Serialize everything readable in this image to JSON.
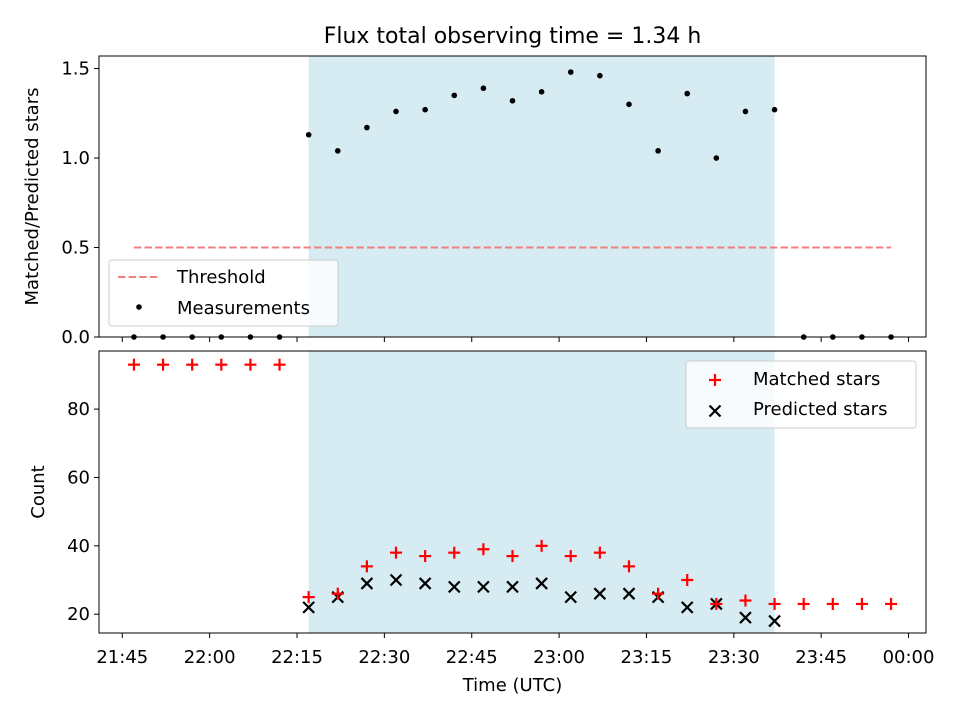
{
  "chart_data": [
    {
      "type": "scatter",
      "title": "Flux total observing time = 1.34 h",
      "xlabel": "",
      "ylabel": "Matched/Predicted stars",
      "ylim": [
        0,
        1.57
      ],
      "yticks": [
        "0.0",
        "0.5",
        "1.0",
        "1.5"
      ],
      "ytick_values": [
        0,
        0.5,
        1.0,
        1.5
      ],
      "x_time_range": [
        "21:41",
        "00:03"
      ],
      "shaded_span": {
        "start": "22:17",
        "end": "23:37",
        "color": "#add8e6"
      },
      "threshold": {
        "name": "Threshold",
        "value": 0.5,
        "start": "21:47",
        "end": "23:57",
        "color": "#f08080"
      },
      "series": [
        {
          "name": "Measurements",
          "marker": "dot",
          "color": "#000000",
          "x": [
            "21:47",
            "21:52",
            "21:57",
            "22:02",
            "22:07",
            "22:12",
            "22:17",
            "22:22",
            "22:27",
            "22:32",
            "22:37",
            "22:42",
            "22:47",
            "22:52",
            "22:57",
            "23:02",
            "23:07",
            "23:12",
            "23:17",
            "23:22",
            "23:27",
            "23:32",
            "23:37",
            "23:42",
            "23:47",
            "23:52",
            "23:57"
          ],
          "y": [
            0,
            0,
            0,
            0,
            0,
            0,
            1.13,
            1.04,
            1.17,
            1.26,
            1.27,
            1.35,
            1.39,
            1.32,
            1.37,
            1.48,
            1.46,
            1.3,
            1.04,
            1.36,
            1.0,
            1.26,
            1.27,
            0,
            0,
            0,
            0
          ]
        }
      ],
      "legend": {
        "placement": "lower-left",
        "entries": [
          "Threshold",
          "Measurements"
        ]
      }
    },
    {
      "type": "scatter",
      "title": "",
      "xlabel": "Time (UTC)",
      "ylabel": "Count",
      "ylim": [
        14.5,
        97
      ],
      "yticks": [
        "20",
        "40",
        "60",
        "80"
      ],
      "ytick_values": [
        20,
        40,
        60,
        80
      ],
      "xticks": [
        "21:45",
        "22:00",
        "22:15",
        "22:30",
        "22:45",
        "23:00",
        "23:15",
        "23:30",
        "23:45",
        "00:00"
      ],
      "xtick_times": [
        "21:45",
        "22:00",
        "22:15",
        "22:30",
        "22:45",
        "23:00",
        "23:15",
        "23:30",
        "23:45",
        "00:00"
      ],
      "x_time_range": [
        "21:41",
        "00:03"
      ],
      "shaded_span": {
        "start": "22:17",
        "end": "23:37",
        "color": "#add8e6"
      },
      "series": [
        {
          "name": "Matched stars",
          "marker": "plus",
          "color": "#ff0000",
          "x": [
            "21:47",
            "21:52",
            "21:57",
            "22:02",
            "22:07",
            "22:12",
            "22:17",
            "22:22",
            "22:27",
            "22:32",
            "22:37",
            "22:42",
            "22:47",
            "22:52",
            "22:57",
            "23:02",
            "23:07",
            "23:12",
            "23:17",
            "23:22",
            "23:27",
            "23:32",
            "23:37",
            "23:42",
            "23:47",
            "23:52",
            "23:57"
          ],
          "y": [
            93,
            93,
            93,
            93,
            93,
            93,
            25,
            26,
            34,
            38,
            37,
            38,
            39,
            37,
            40,
            37,
            38,
            34,
            26,
            30,
            23,
            24,
            23,
            23,
            23,
            23,
            23
          ]
        },
        {
          "name": "Predicted stars",
          "marker": "x",
          "color": "#000000",
          "x": [
            "22:17",
            "22:22",
            "22:27",
            "22:32",
            "22:37",
            "22:42",
            "22:47",
            "22:52",
            "22:57",
            "23:02",
            "23:07",
            "23:12",
            "23:17",
            "23:22",
            "23:27",
            "23:32",
            "23:37"
          ],
          "y": [
            22,
            25,
            29,
            30,
            29,
            28,
            28,
            28,
            29,
            25,
            26,
            26,
            25,
            22,
            23,
            19,
            18
          ]
        }
      ],
      "legend": {
        "placement": "upper-right",
        "entries": [
          "Matched stars",
          "Predicted stars"
        ]
      }
    }
  ]
}
